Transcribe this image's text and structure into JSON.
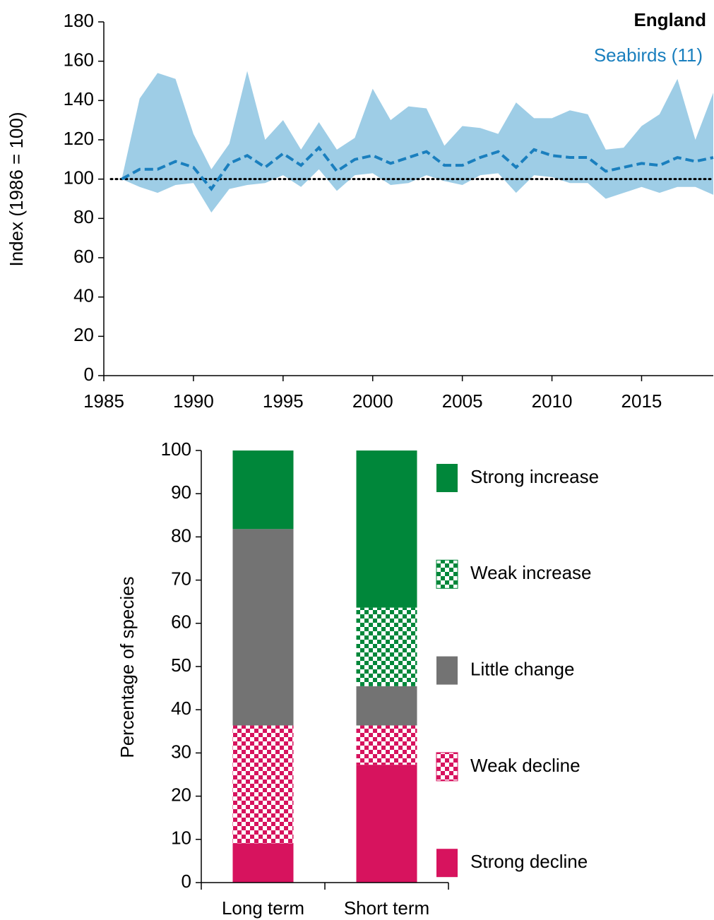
{
  "chart_data": [
    {
      "type": "line",
      "title": "England",
      "y_label": "Index (1986 = 100)",
      "x": [
        1986,
        1987,
        1988,
        1989,
        1990,
        1991,
        1992,
        1993,
        1994,
        1995,
        1996,
        1997,
        1998,
        1999,
        2000,
        2001,
        2002,
        2003,
        2004,
        2005,
        2006,
        2007,
        2008,
        2009,
        2010,
        2011,
        2012,
        2013,
        2014,
        2015,
        2016,
        2017,
        2018,
        2019
      ],
      "series": [
        {
          "name": "Seabirds (11)",
          "color": "#1a7fbe",
          "band_color": "#9ecde6",
          "values": [
            100,
            105,
            105,
            109,
            106,
            95,
            108,
            112,
            106,
            113,
            107,
            116,
            104,
            110,
            112,
            108,
            111,
            114,
            107,
            107,
            111,
            114,
            106,
            115,
            112,
            111,
            111,
            104,
            106,
            108,
            107,
            111,
            109,
            111
          ],
          "upper": [
            100,
            141,
            154,
            151,
            123,
            105,
            118,
            155,
            120,
            130,
            115,
            129,
            115,
            121,
            146,
            130,
            137,
            136,
            117,
            127,
            126,
            123,
            139,
            131,
            131,
            135,
            133,
            115,
            116,
            127,
            133,
            151,
            120,
            144
          ],
          "lower": [
            100,
            96,
            93,
            97,
            98,
            83,
            95,
            97,
            98,
            102,
            96,
            105,
            94,
            102,
            103,
            97,
            98,
            102,
            99,
            97,
            102,
            103,
            93,
            102,
            101,
            98,
            98,
            90,
            93,
            96,
            93,
            96,
            96,
            92
          ]
        }
      ],
      "reference_line": 100,
      "xlim": [
        1985,
        2019
      ],
      "xticks": [
        1985,
        1990,
        1995,
        2000,
        2005,
        2010,
        2015
      ],
      "ylim": [
        0,
        180
      ],
      "yticks": [
        0,
        20,
        40,
        60,
        80,
        100,
        120,
        140,
        160,
        180
      ]
    },
    {
      "type": "bar",
      "stacked": true,
      "y_label": "Percentage of species",
      "categories": [
        "Long term",
        "Short term"
      ],
      "series": [
        {
          "name": "Strong decline",
          "color": "#d7135e",
          "pattern": "solid",
          "values": [
            9.09,
            27.27
          ]
        },
        {
          "name": "Weak decline",
          "color": "#d7135e",
          "pattern": "checker",
          "values": [
            27.27,
            9.09
          ]
        },
        {
          "name": "Little change",
          "color": "#737373",
          "pattern": "solid",
          "values": [
            45.45,
            9.09
          ]
        },
        {
          "name": "Weak increase",
          "color": "#00873a",
          "pattern": "checker",
          "values": [
            0,
            18.18
          ]
        },
        {
          "name": "Strong increase",
          "color": "#00873a",
          "pattern": "solid",
          "values": [
            18.18,
            36.36
          ]
        }
      ],
      "ylim": [
        0,
        100
      ],
      "yticks": [
        0,
        10,
        20,
        30,
        40,
        50,
        60,
        70,
        80,
        90,
        100
      ]
    }
  ]
}
